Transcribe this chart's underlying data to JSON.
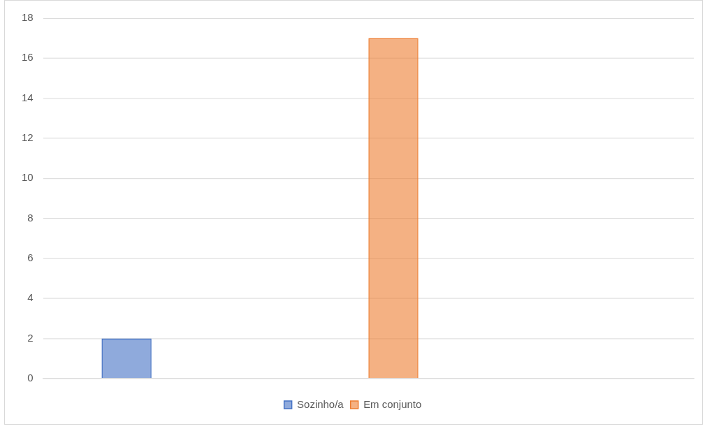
{
  "chart_data": {
    "type": "bar",
    "categories": [
      null,
      null,
      null
    ],
    "series": [
      {
        "name": "Sozinho/a",
        "color": "#4472c4",
        "values": [
          2,
          null,
          null
        ]
      },
      {
        "name": "Em conjunto",
        "color": "#ed7d31",
        "values": [
          null,
          17,
          null
        ]
      }
    ],
    "ylim": [
      0,
      18
    ],
    "yticks": [
      0,
      2,
      4,
      6,
      8,
      10,
      12,
      14,
      16,
      18
    ],
    "grid": "y",
    "legend": "bottom"
  }
}
